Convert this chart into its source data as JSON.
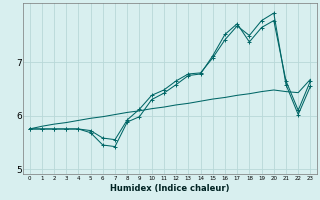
{
  "title": "",
  "xlabel": "Humidex (Indice chaleur)",
  "x_values": [
    0,
    1,
    2,
    3,
    4,
    5,
    6,
    7,
    8,
    9,
    10,
    11,
    12,
    13,
    14,
    15,
    16,
    17,
    18,
    19,
    20,
    21,
    22,
    23
  ],
  "line1": [
    5.75,
    5.75,
    5.75,
    5.75,
    5.75,
    5.68,
    5.45,
    5.42,
    5.88,
    5.98,
    6.3,
    6.42,
    6.58,
    6.75,
    6.78,
    7.12,
    7.52,
    7.72,
    7.38,
    7.65,
    7.78,
    6.65,
    6.1,
    6.65
  ],
  "line2": [
    5.75,
    5.75,
    5.75,
    5.75,
    5.75,
    5.72,
    5.58,
    5.55,
    5.92,
    6.12,
    6.38,
    6.48,
    6.65,
    6.78,
    6.8,
    7.08,
    7.42,
    7.68,
    7.5,
    7.78,
    7.92,
    6.58,
    6.02,
    6.55
  ],
  "line3": [
    5.75,
    5.8,
    5.84,
    5.87,
    5.91,
    5.95,
    5.98,
    6.02,
    6.06,
    6.09,
    6.13,
    6.16,
    6.2,
    6.23,
    6.27,
    6.31,
    6.34,
    6.38,
    6.41,
    6.45,
    6.48,
    6.45,
    6.43,
    6.68
  ],
  "bg_color": "#d8efef",
  "grid_color": "#b8d8d8",
  "line_color": "#006666",
  "ylim": [
    4.9,
    8.1
  ],
  "xlim": [
    -0.5,
    23.5
  ],
  "yticks": [
    5,
    6,
    7
  ],
  "xticks": [
    0,
    1,
    2,
    3,
    4,
    5,
    6,
    7,
    8,
    9,
    10,
    11,
    12,
    13,
    14,
    15,
    16,
    17,
    18,
    19,
    20,
    21,
    22,
    23
  ],
  "xlabel_fontsize": 6,
  "xtick_fontsize": 4,
  "ytick_fontsize": 6.5,
  "lw": 0.75,
  "markersize": 2.5
}
